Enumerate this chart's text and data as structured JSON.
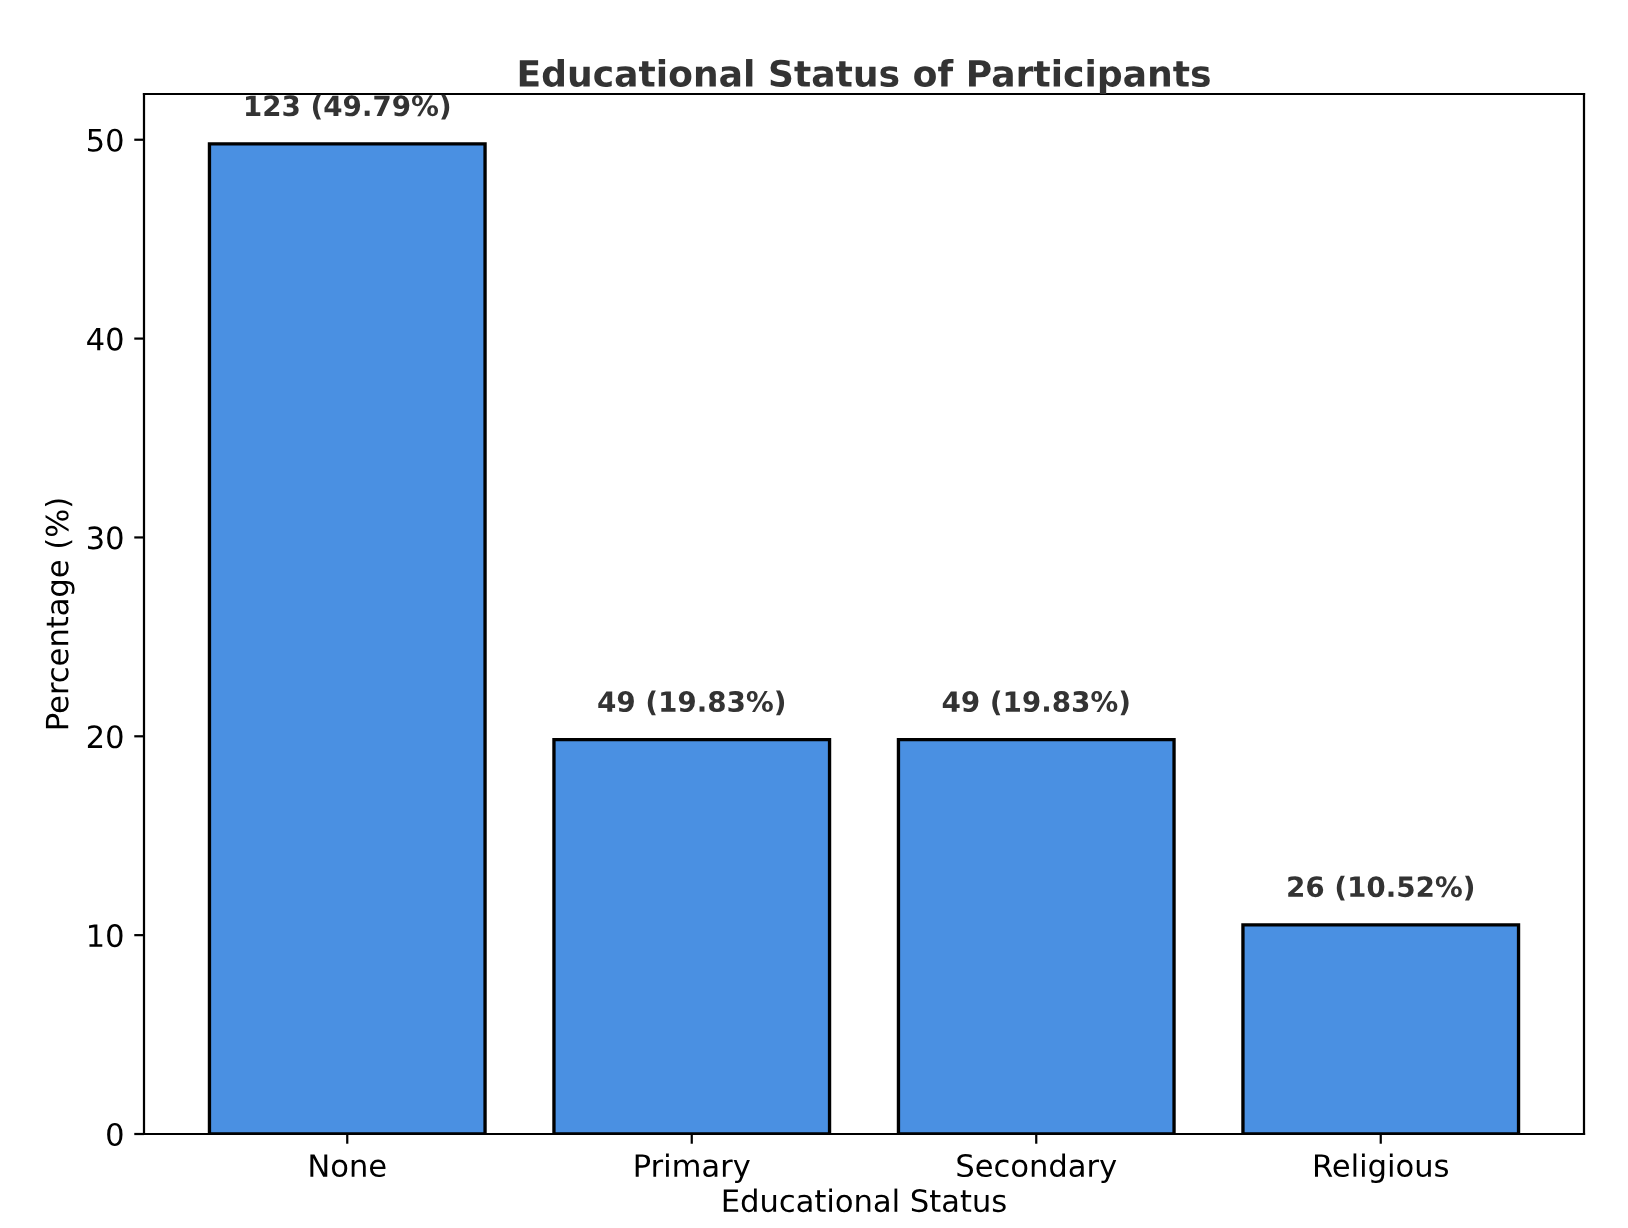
{
  "chart_data": {
    "type": "bar",
    "title": "Educational Status of Participants",
    "xlabel": "Educational Status",
    "ylabel": "Percentage (%)",
    "categories": [
      "None",
      "Primary",
      "Secondary",
      "Religious"
    ],
    "values": [
      49.79,
      19.83,
      19.83,
      10.52
    ],
    "value_labels": [
      "123 (49.79%)",
      "49 (19.83%)",
      "49 (19.83%)",
      "26 (10.52%)"
    ],
    "color": "#4a90e2",
    "ylim": [
      0,
      52.3
    ],
    "yticks": [
      0,
      10,
      20,
      30,
      40,
      50
    ],
    "grid": false,
    "legend": false
  }
}
